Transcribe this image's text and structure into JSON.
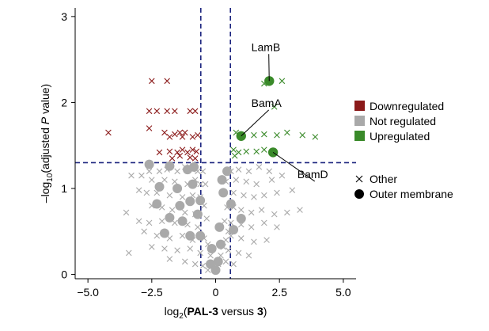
{
  "chart_data": {
    "type": "scatter",
    "xlabel": {
      "prefix": "log",
      "sub": "2",
      "open": "(",
      "bold1": "PAL-3",
      "mid": " versus ",
      "bold2": "3",
      "close": ")"
    },
    "ylabel": {
      "prefix": "–log",
      "sub": "10",
      "mid": "(adjusted ",
      "italic": "P",
      "end": " value)"
    },
    "xlim": [
      -5.5,
      5.5
    ],
    "ylim": [
      -0.05,
      3.1
    ],
    "x_ticks": [
      {
        "value": -5,
        "label": "−5.0"
      },
      {
        "value": -2.5,
        "label": "−2.5"
      },
      {
        "value": 0,
        "label": "0"
      },
      {
        "value": 2.5,
        "label": "2.5"
      },
      {
        "value": 5,
        "label": "5.0"
      }
    ],
    "y_ticks": [
      {
        "value": 0,
        "label": "0"
      },
      {
        "value": 1,
        "label": "1"
      },
      {
        "value": 2,
        "label": "2"
      },
      {
        "value": 3,
        "label": "3"
      }
    ],
    "thresholds": {
      "x": [
        -0.58,
        0.58
      ],
      "y": 1.3,
      "color": "#1a237e"
    },
    "colors": {
      "down": "#8b1a1a",
      "notreg": "#a9a9a9",
      "up": "#3a8a2a"
    },
    "legend": {
      "placement": "right",
      "color_entries": [
        {
          "label": "Downregulated",
          "color": "#8b1a1a"
        },
        {
          "label": "Not regulated",
          "color": "#a9a9a9"
        },
        {
          "label": "Upregulated",
          "color": "#3a8a2a"
        }
      ],
      "shape_entries": [
        {
          "label": "Other",
          "shape": "cross"
        },
        {
          "label": "Outer membrane",
          "shape": "circle"
        }
      ]
    },
    "series": [
      {
        "group": "down",
        "shape": "cross",
        "points": [
          [
            -2.5,
            2.25
          ],
          [
            -1.9,
            2.25
          ],
          [
            -2.6,
            1.9
          ],
          [
            -2.3,
            1.9
          ],
          [
            -1.9,
            1.9
          ],
          [
            -1.6,
            1.9
          ],
          [
            -1.0,
            1.9
          ],
          [
            -0.8,
            1.9
          ],
          [
            -4.2,
            1.65
          ],
          [
            -2.6,
            1.7
          ],
          [
            -2.0,
            1.65
          ],
          [
            -1.8,
            1.6
          ],
          [
            -1.6,
            1.63
          ],
          [
            -1.4,
            1.65
          ],
          [
            -1.3,
            1.6
          ],
          [
            -1.2,
            1.65
          ],
          [
            -0.9,
            1.6
          ],
          [
            -0.7,
            1.62
          ],
          [
            -2.2,
            1.42
          ],
          [
            -1.8,
            1.43
          ],
          [
            -1.5,
            1.42
          ],
          [
            -1.3,
            1.45
          ],
          [
            -1.1,
            1.42
          ],
          [
            -0.9,
            1.45
          ],
          [
            -0.75,
            1.43
          ],
          [
            -1.7,
            1.35
          ],
          [
            -1.4,
            1.38
          ],
          [
            -1.0,
            1.36
          ],
          [
            -0.8,
            1.35
          ]
        ]
      },
      {
        "group": "up",
        "shape": "cross",
        "points": [
          [
            2.6,
            2.25
          ],
          [
            1.9,
            2.22
          ],
          [
            2.3,
            1.95
          ],
          [
            0.8,
            1.65
          ],
          [
            1.5,
            1.62
          ],
          [
            1.9,
            1.63
          ],
          [
            2.4,
            1.62
          ],
          [
            2.8,
            1.65
          ],
          [
            3.4,
            1.62
          ],
          [
            3.9,
            1.6
          ],
          [
            0.7,
            1.45
          ],
          [
            0.9,
            1.42
          ],
          [
            1.2,
            1.43
          ],
          [
            1.6,
            1.43
          ],
          [
            1.9,
            1.45
          ],
          [
            0.75,
            1.38
          ]
        ]
      },
      {
        "group": "notreg",
        "shape": "cross",
        "points": [
          [
            -2.6,
            1.2
          ],
          [
            -2.2,
            1.2
          ],
          [
            -1.9,
            1.22
          ],
          [
            -1.5,
            1.2
          ],
          [
            -1.2,
            1.25
          ],
          [
            -0.9,
            1.22
          ],
          [
            -0.7,
            1.2
          ],
          [
            -3.3,
            1.15
          ],
          [
            -2.9,
            1.15
          ],
          [
            -2.5,
            1.1
          ],
          [
            -2.0,
            1.1
          ],
          [
            -1.6,
            1.08
          ],
          [
            -1.1,
            1.05
          ],
          [
            -0.8,
            1.1
          ],
          [
            -0.6,
            1.05
          ],
          [
            -3.0,
            0.98
          ],
          [
            -2.7,
            0.95
          ],
          [
            -2.3,
            0.95
          ],
          [
            -1.8,
            0.92
          ],
          [
            -1.3,
            0.9
          ],
          [
            -0.9,
            0.92
          ],
          [
            -0.6,
            0.9
          ],
          [
            -3.5,
            0.72
          ],
          [
            -2.5,
            0.8
          ],
          [
            -2.1,
            0.78
          ],
          [
            -1.7,
            0.75
          ],
          [
            -1.2,
            0.72
          ],
          [
            -0.8,
            0.7
          ],
          [
            -3.0,
            0.62
          ],
          [
            -2.6,
            0.6
          ],
          [
            -2.1,
            0.62
          ],
          [
            -1.6,
            0.6
          ],
          [
            -1.1,
            0.58
          ],
          [
            -0.7,
            0.55
          ],
          [
            -2.8,
            0.5
          ],
          [
            -2.3,
            0.45
          ],
          [
            -1.8,
            0.42
          ],
          [
            -1.3,
            0.45
          ],
          [
            -0.9,
            0.4
          ],
          [
            -3.4,
            0.25
          ],
          [
            -2.5,
            0.32
          ],
          [
            -2.0,
            0.3
          ],
          [
            -1.5,
            0.28
          ],
          [
            -1.0,
            0.3
          ],
          [
            -0.6,
            0.25
          ],
          [
            -1.8,
            0.18
          ],
          [
            -1.2,
            0.15
          ],
          [
            -0.8,
            0.12
          ],
          [
            -0.5,
            0.1
          ],
          [
            -0.3,
            0.05
          ],
          [
            -0.45,
            0.42
          ],
          [
            -0.3,
            0.35
          ],
          [
            -0.2,
            0.22
          ],
          [
            -0.1,
            0.12
          ],
          [
            0.0,
            0.06
          ],
          [
            0.1,
            0.12
          ],
          [
            0.2,
            0.22
          ],
          [
            0.3,
            0.32
          ],
          [
            0.4,
            0.4
          ],
          [
            0.5,
            0.5
          ],
          [
            -0.45,
            0.8
          ],
          [
            -0.35,
            0.65
          ],
          [
            0.35,
            0.62
          ],
          [
            0.45,
            0.78
          ],
          [
            -0.5,
            1.2
          ],
          [
            -0.4,
            1.05
          ],
          [
            0.4,
            1.08
          ],
          [
            0.5,
            1.22
          ],
          [
            0.6,
            1.2
          ],
          [
            0.9,
            1.22
          ],
          [
            1.3,
            1.2
          ],
          [
            1.7,
            1.25
          ],
          [
            2.1,
            1.2
          ],
          [
            0.8,
            1.1
          ],
          [
            1.2,
            1.08
          ],
          [
            1.6,
            1.05
          ],
          [
            2.2,
            1.1
          ],
          [
            2.6,
            1.15
          ],
          [
            0.7,
            0.95
          ],
          [
            1.1,
            0.92
          ],
          [
            1.5,
            0.9
          ],
          [
            1.9,
            0.92
          ],
          [
            2.4,
            0.95
          ],
          [
            3.0,
            0.98
          ],
          [
            0.7,
            0.78
          ],
          [
            1.0,
            0.75
          ],
          [
            1.4,
            0.72
          ],
          [
            1.8,
            0.75
          ],
          [
            2.3,
            0.7
          ],
          [
            2.8,
            0.72
          ],
          [
            3.3,
            0.75
          ],
          [
            0.6,
            0.6
          ],
          [
            1.0,
            0.58
          ],
          [
            1.4,
            0.55
          ],
          [
            1.9,
            0.6
          ],
          [
            2.4,
            0.55
          ],
          [
            0.6,
            0.45
          ],
          [
            1.0,
            0.42
          ],
          [
            1.5,
            0.38
          ],
          [
            2.0,
            0.4
          ],
          [
            0.5,
            0.28
          ],
          [
            0.9,
            0.25
          ],
          [
            1.3,
            0.22
          ],
          [
            0.4,
            0.15
          ],
          [
            0.7,
            0.12
          ]
        ]
      },
      {
        "group": "notreg",
        "shape": "circle",
        "points": [
          [
            -2.6,
            1.28
          ],
          [
            -1.8,
            1.26
          ],
          [
            -1.1,
            1.22
          ],
          [
            -0.85,
            1.25
          ],
          [
            -2.2,
            1.02
          ],
          [
            -1.5,
            1.0
          ],
          [
            -0.9,
            1.05
          ],
          [
            -2.3,
            0.82
          ],
          [
            -0.6,
            0.86
          ],
          [
            -1.4,
            0.8
          ],
          [
            -1.0,
            0.85
          ],
          [
            -1.8,
            0.66
          ],
          [
            -0.7,
            0.7
          ],
          [
            -1.3,
            0.62
          ],
          [
            -2.0,
            0.48
          ],
          [
            -1.0,
            0.45
          ],
          [
            -0.6,
            0.45
          ],
          [
            -0.2,
            0.12
          ],
          [
            0.0,
            0.05
          ],
          [
            0.1,
            0.15
          ],
          [
            -0.15,
            0.3
          ],
          [
            0.2,
            0.35
          ],
          [
            0.15,
            0.55
          ],
          [
            0.3,
            0.95
          ],
          [
            0.25,
            1.1
          ],
          [
            0.45,
            1.2
          ],
          [
            0.7,
            0.52
          ],
          [
            0.6,
            0.82
          ],
          [
            1.0,
            0.65
          ]
        ]
      },
      {
        "group": "up",
        "shape": "circle",
        "labeled": true,
        "points": [
          [
            2.1,
            2.25
          ],
          [
            1.0,
            1.61
          ],
          [
            2.25,
            1.42
          ]
        ]
      }
    ],
    "annotations": [
      {
        "text": "LamB",
        "point": [
          2.1,
          2.25
        ],
        "label_at": [
          1.4,
          2.6
        ]
      },
      {
        "text": "BamA",
        "point": [
          1.0,
          1.61
        ],
        "label_at": [
          1.4,
          1.95
        ]
      },
      {
        "text": "BamD",
        "point": [
          2.25,
          1.42
        ],
        "label_at": [
          3.2,
          1.12
        ]
      }
    ]
  }
}
